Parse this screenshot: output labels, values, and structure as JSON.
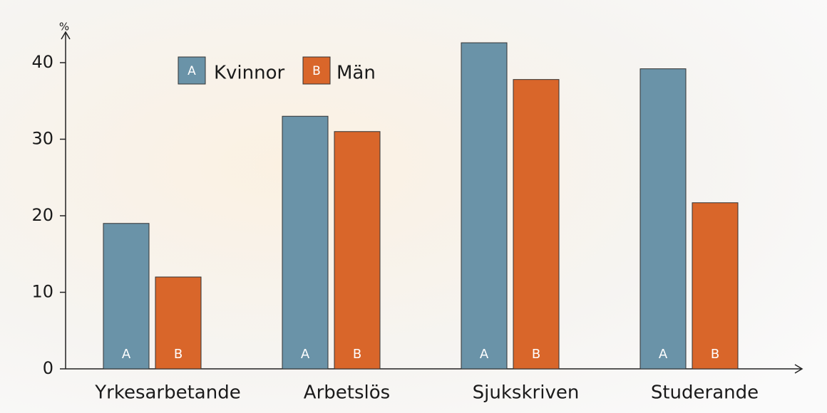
{
  "chart_data": {
    "type": "bar",
    "y_unit": "%",
    "categories": [
      "Yrkesarbetande",
      "Arbetslös",
      "Sjukskriven",
      "Studerande"
    ],
    "series": [
      {
        "name": "Kvinnor",
        "label": "A",
        "color": "#6a93a8",
        "values": [
          19,
          33,
          42.6,
          39.2
        ]
      },
      {
        "name": "Män",
        "label": "B",
        "color": "#d9662a",
        "values": [
          12,
          31,
          37.8,
          21.7
        ]
      }
    ],
    "ylim": [
      0,
      44
    ],
    "yticks": [
      0,
      10,
      20,
      30,
      40
    ]
  }
}
